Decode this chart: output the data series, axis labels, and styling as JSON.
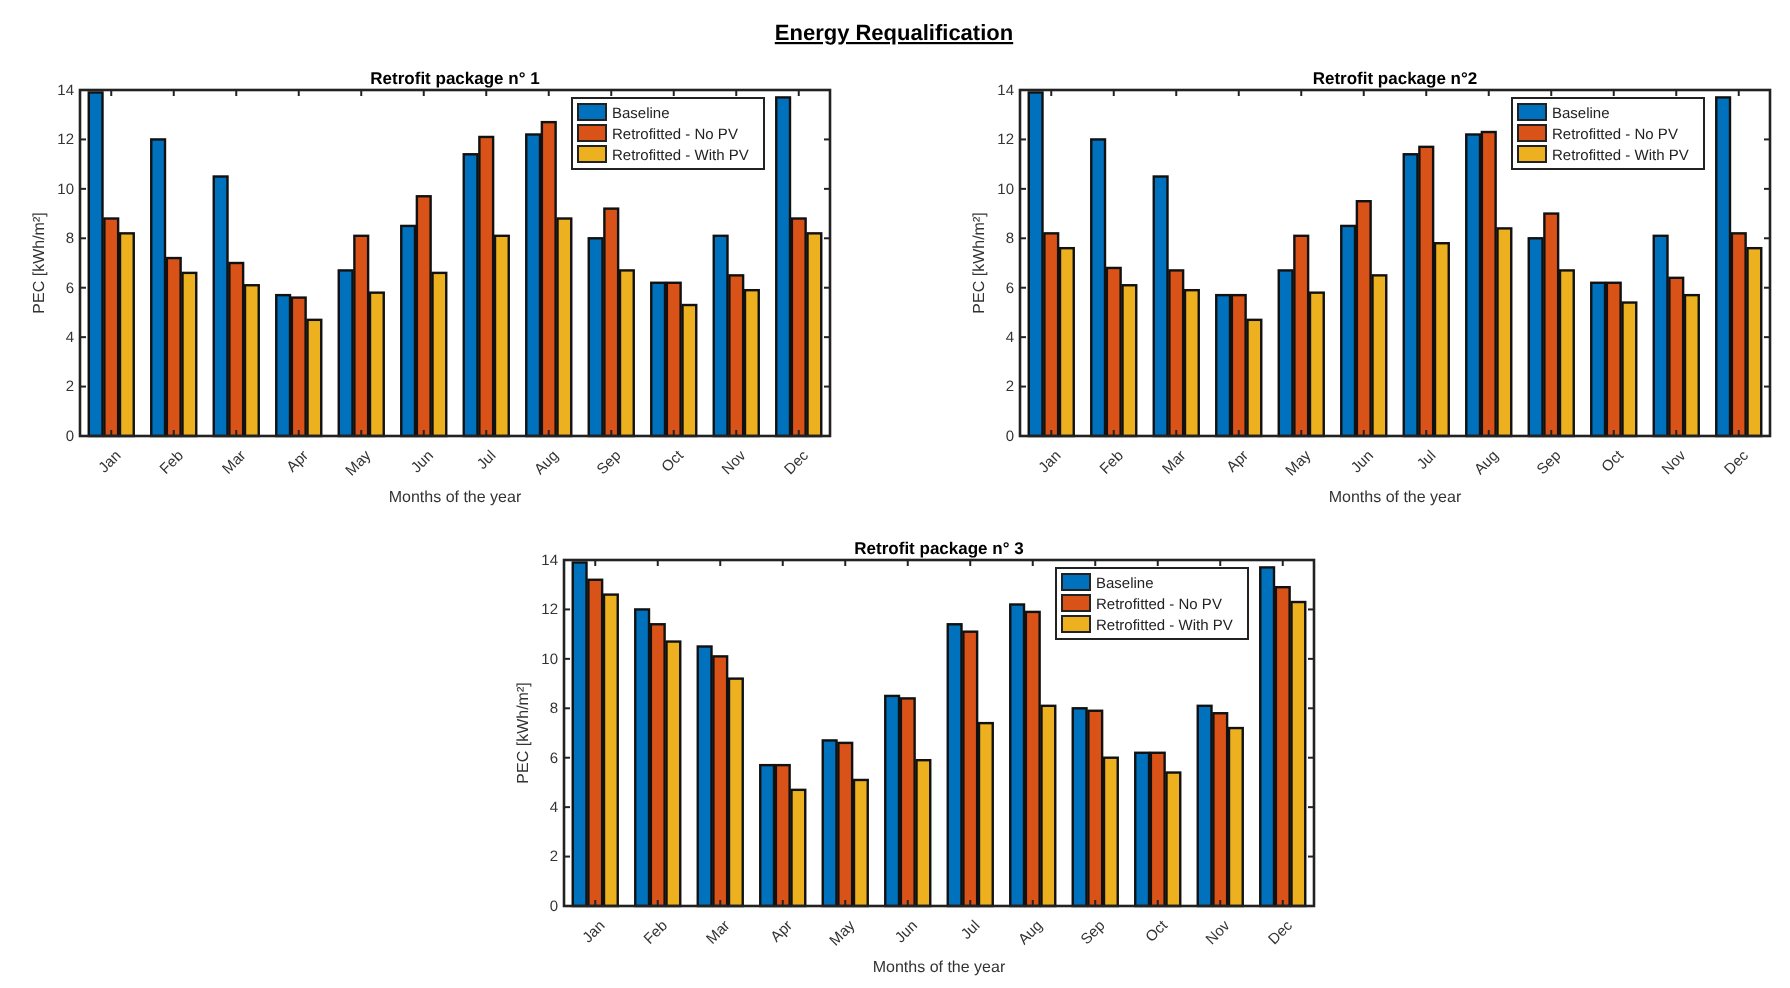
{
  "chart_data": [
    {
      "type": "other",
      "title": "Energy Requalification"
    },
    {
      "type": "bar",
      "title": "Retrofit package n° 1",
      "xlabel": "Months of the year",
      "ylabel": "PEC [kWh/m²]",
      "categories": [
        "Jan",
        "Feb",
        "Mar",
        "Apr",
        "May",
        "Jun",
        "Jul",
        "Aug",
        "Sep",
        "Oct",
        "Nov",
        "Dec"
      ],
      "ylim": [
        0,
        14
      ],
      "yticks": [
        0,
        2,
        4,
        6,
        8,
        10,
        12,
        14
      ],
      "legend": "top right",
      "series": [
        {
          "name": "Baseline",
          "color": "#0072bd",
          "values": [
            13.9,
            12.0,
            10.5,
            5.7,
            6.7,
            8.5,
            11.4,
            12.2,
            8.0,
            6.2,
            8.1,
            13.7
          ]
        },
        {
          "name": "Retrofitted - No PV",
          "color": "#d95319",
          "values": [
            8.8,
            7.2,
            7.0,
            5.6,
            8.1,
            9.7,
            12.1,
            12.7,
            9.2,
            6.2,
            6.5,
            8.8
          ]
        },
        {
          "name": "Retrofitted - With PV",
          "color": "#edb120",
          "values": [
            8.2,
            6.6,
            6.1,
            4.7,
            5.8,
            6.6,
            8.1,
            8.8,
            6.7,
            5.3,
            5.9,
            8.2
          ]
        }
      ]
    },
    {
      "type": "bar",
      "title": "Retrofit package n°2",
      "xlabel": "Months of the year",
      "ylabel": "PEC [kWh/m²]",
      "categories": [
        "Jan",
        "Feb",
        "Mar",
        "Apr",
        "May",
        "Jun",
        "Jul",
        "Aug",
        "Sep",
        "Oct",
        "Nov",
        "Dec"
      ],
      "ylim": [
        0,
        14
      ],
      "yticks": [
        0,
        2,
        4,
        6,
        8,
        10,
        12,
        14
      ],
      "legend": "top right",
      "series": [
        {
          "name": "Baseline",
          "color": "#0072bd",
          "values": [
            13.9,
            12.0,
            10.5,
            5.7,
            6.7,
            8.5,
            11.4,
            12.2,
            8.0,
            6.2,
            8.1,
            13.7
          ]
        },
        {
          "name": "Retrofitted - No PV",
          "color": "#d95319",
          "values": [
            8.2,
            6.8,
            6.7,
            5.7,
            8.1,
            9.5,
            11.7,
            12.3,
            9.0,
            6.2,
            6.4,
            8.2
          ]
        },
        {
          "name": "Retrofitted - With PV",
          "color": "#edb120",
          "values": [
            7.6,
            6.1,
            5.9,
            4.7,
            5.8,
            6.5,
            7.8,
            8.4,
            6.7,
            5.4,
            5.7,
            7.6
          ]
        }
      ]
    },
    {
      "type": "bar",
      "title": "Retrofit package n° 3",
      "xlabel": "Months of the year",
      "ylabel": "PEC [kWh/m²]",
      "categories": [
        "Jan",
        "Feb",
        "Mar",
        "Apr",
        "May",
        "Jun",
        "Jul",
        "Aug",
        "Sep",
        "Oct",
        "Nov",
        "Dec"
      ],
      "ylim": [
        0,
        14
      ],
      "yticks": [
        0,
        2,
        4,
        6,
        8,
        10,
        12,
        14
      ],
      "legend": "top right",
      "series": [
        {
          "name": "Baseline",
          "color": "#0072bd",
          "values": [
            13.9,
            12.0,
            10.5,
            5.7,
            6.7,
            8.5,
            11.4,
            12.2,
            8.0,
            6.2,
            8.1,
            13.7
          ]
        },
        {
          "name": "Retrofitted - No PV",
          "color": "#d95319",
          "values": [
            13.2,
            11.4,
            10.1,
            5.7,
            6.6,
            8.4,
            11.1,
            11.9,
            7.9,
            6.2,
            7.8,
            12.9
          ]
        },
        {
          "name": "Retrofitted - With PV",
          "color": "#edb120",
          "values": [
            12.6,
            10.7,
            9.2,
            4.7,
            5.1,
            5.9,
            7.4,
            8.1,
            6.0,
            5.4,
            7.2,
            12.3
          ]
        }
      ]
    }
  ]
}
